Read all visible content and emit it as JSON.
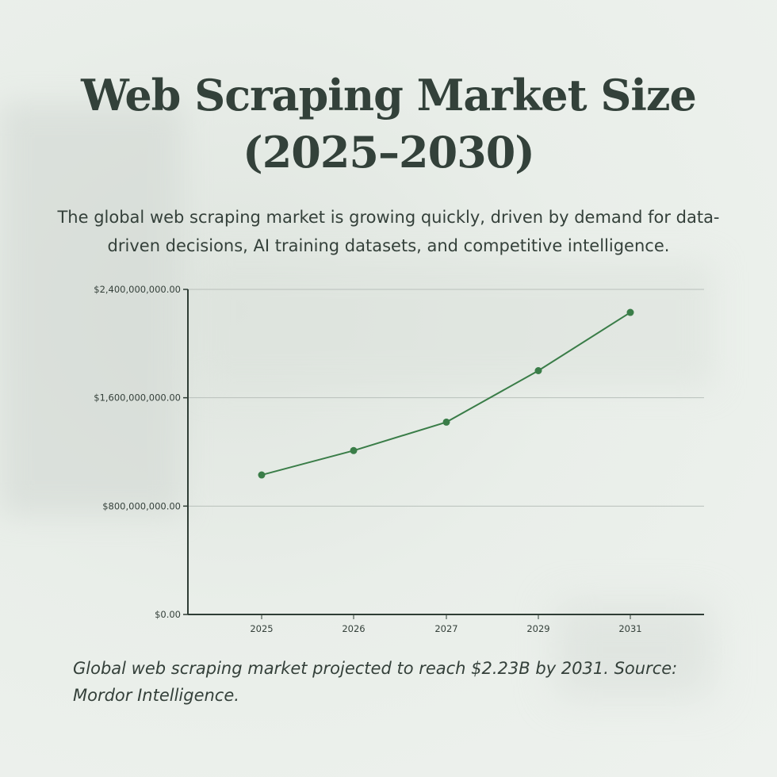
{
  "title_line1": "Web Scraping Market Size",
  "title_line2": "(2025–2030)",
  "subtitle": "The global web scraping market is growing quickly, driven by demand for data-driven decisions, AI training datasets, and competitive intelligence.",
  "caption": "Global web scraping market projected to reach $2.23B by 2031. Source: Mordor Intelligence.",
  "chart_data": {
    "type": "line",
    "categories": [
      "2025",
      "2026",
      "2027",
      "2029",
      "2031"
    ],
    "values": [
      1030000000,
      1210000000,
      1420000000,
      1800000000,
      2230000000
    ],
    "ylim": [
      0,
      2400000000
    ],
    "yticks": [
      0,
      800000000,
      1600000000,
      2400000000
    ],
    "ytick_labels": [
      "$0.00",
      "$800,000,000.00",
      "$1,600,000,000.00",
      "$2,400,000,000.00"
    ],
    "grid": true,
    "line_color": "#3a7d48",
    "axis_color": "#2f3d35"
  }
}
